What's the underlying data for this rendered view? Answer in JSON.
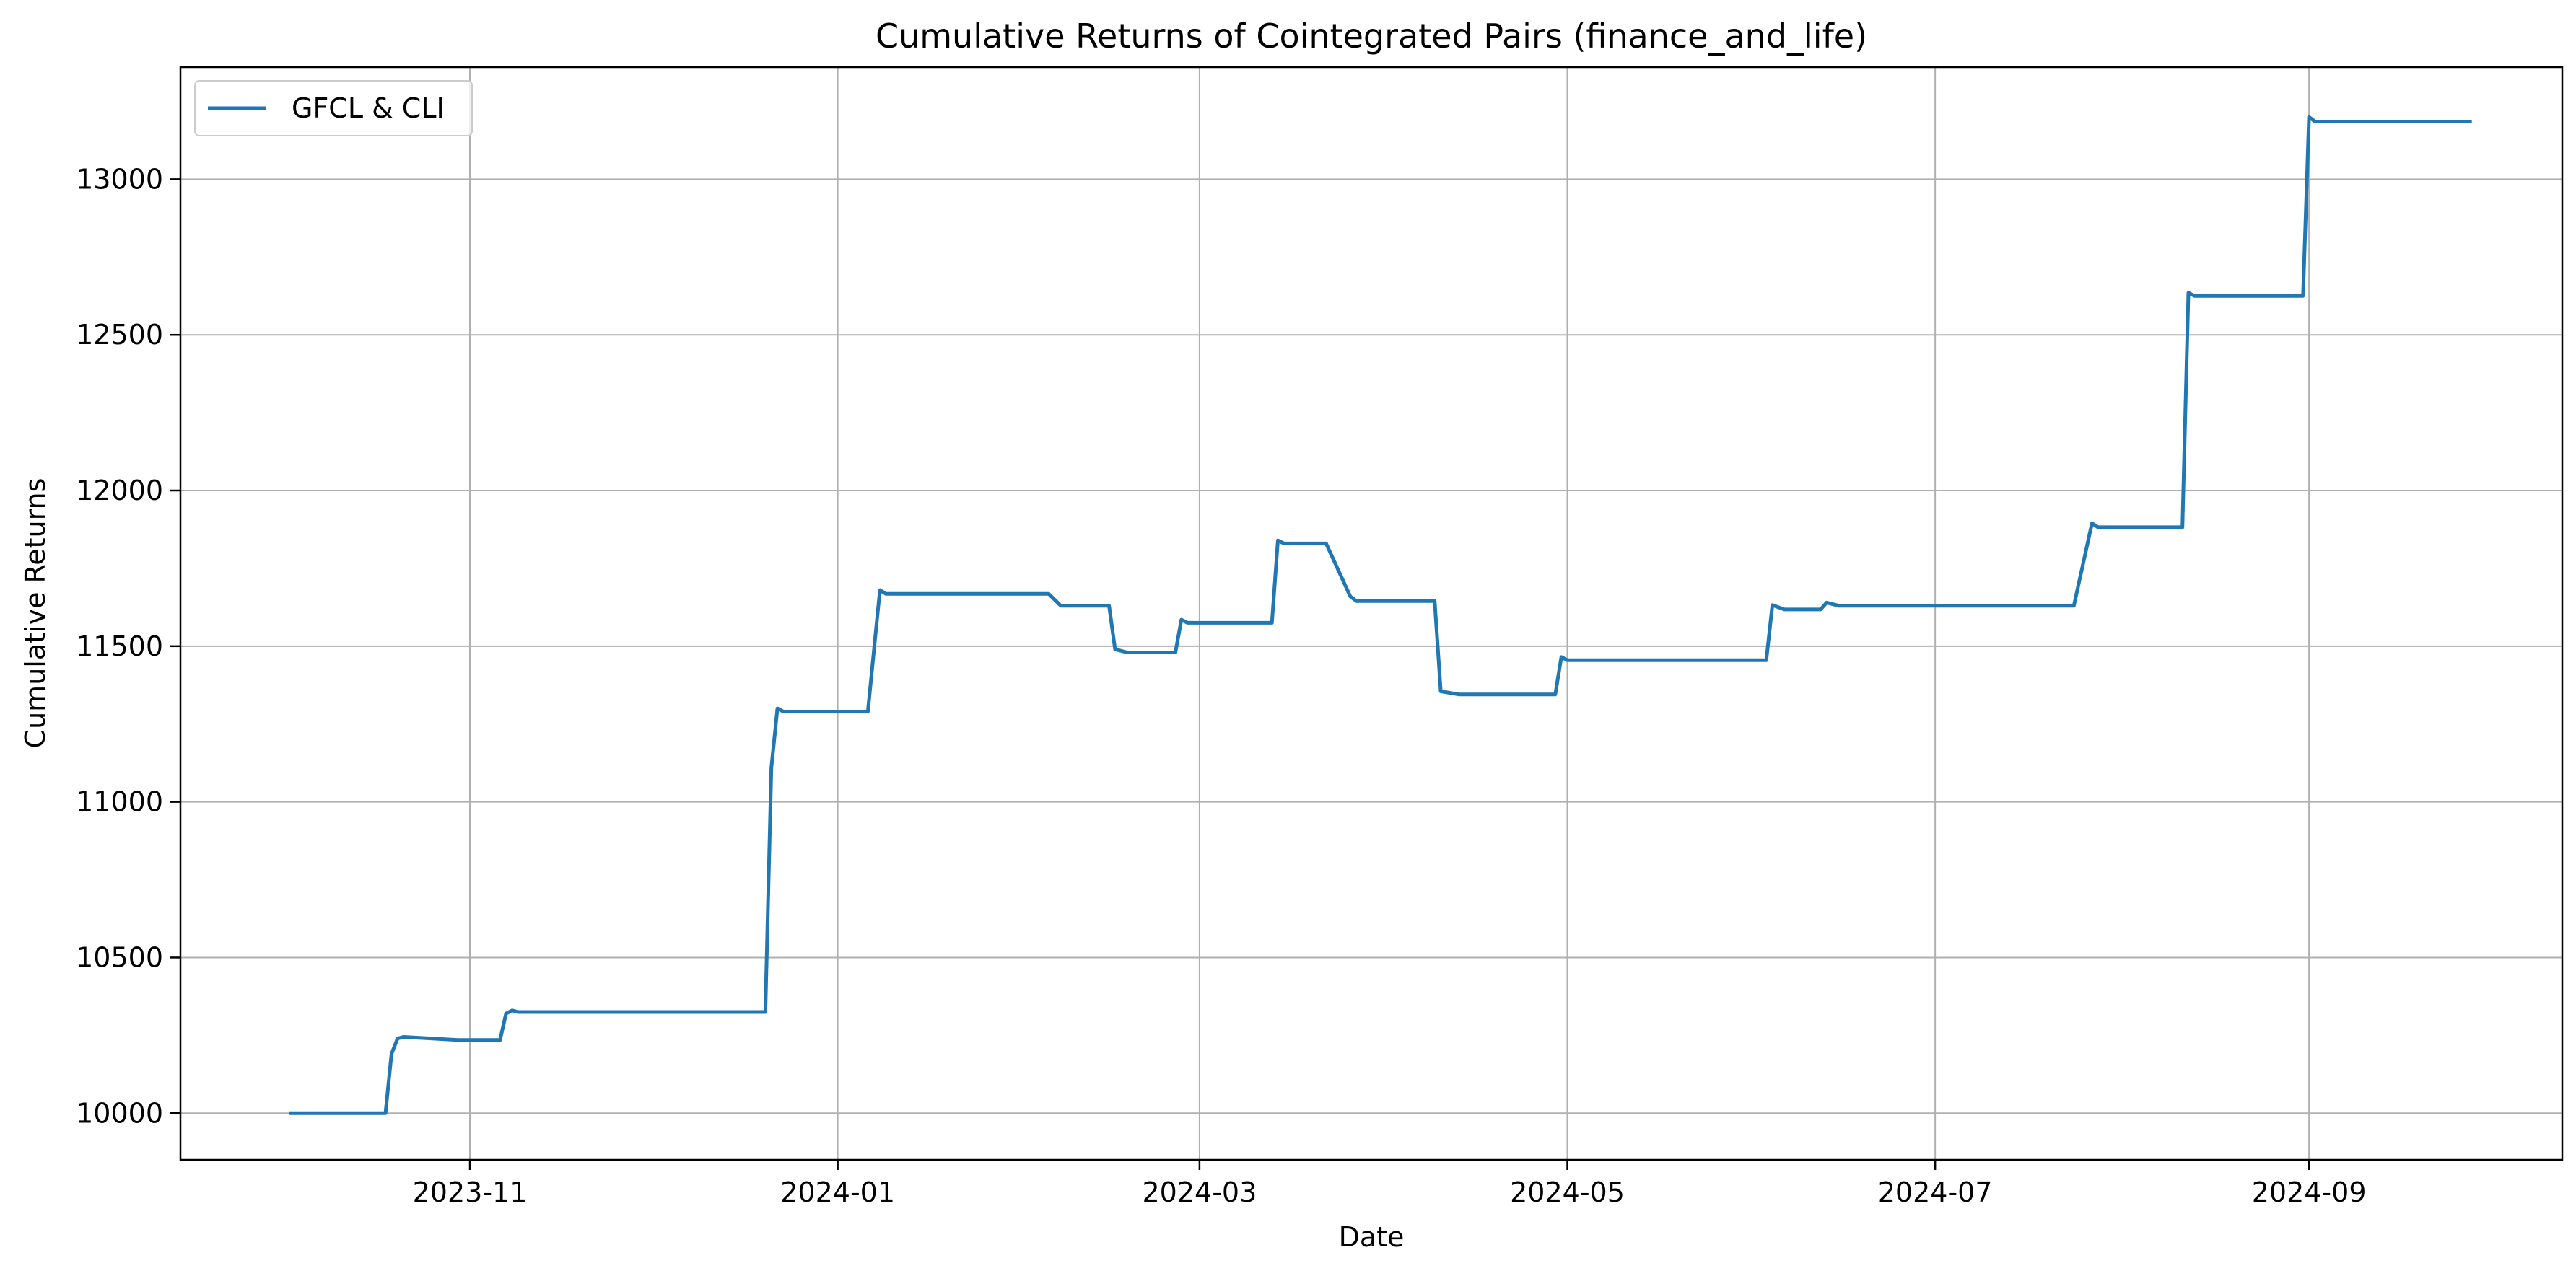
{
  "chart_data": {
    "type": "line",
    "title": "Cumulative Returns of Cointegrated Pairs (finance_and_life)",
    "xlabel": "Date",
    "ylabel": "Cumulative Returns",
    "xlim": [
      "2023-09-14",
      "2024-10-13"
    ],
    "ylim": [
      9850,
      13360
    ],
    "x_ticks": [
      "2023-11-01",
      "2024-01-01",
      "2024-03-01",
      "2024-05-01",
      "2024-07-01",
      "2024-09-01"
    ],
    "x_tick_labels": [
      "2023-11",
      "2024-01",
      "2024-03",
      "2024-05",
      "2024-07",
      "2024-09"
    ],
    "y_ticks": [
      10000,
      10500,
      11000,
      11500,
      12000,
      12500,
      13000
    ],
    "y_tick_labels": [
      "10000",
      "10500",
      "11000",
      "11500",
      "12000",
      "12500",
      "13000"
    ],
    "grid": true,
    "legend_position": "upper-left",
    "colors": {
      "series": "#1f77b4",
      "grid": "#b0b0b0",
      "axes": "#000000"
    },
    "series": [
      {
        "name": "GFCL & CLI",
        "points": [
          [
            "2023-10-02",
            10000
          ],
          [
            "2023-10-18",
            10000
          ],
          [
            "2023-10-19",
            10190
          ],
          [
            "2023-10-20",
            10240
          ],
          [
            "2023-10-21",
            10245
          ],
          [
            "2023-10-30",
            10235
          ],
          [
            "2023-11-06",
            10235
          ],
          [
            "2023-11-07",
            10320
          ],
          [
            "2023-11-08",
            10330
          ],
          [
            "2023-11-09",
            10325
          ],
          [
            "2023-12-20",
            10325
          ],
          [
            "2023-12-21",
            11110
          ],
          [
            "2023-12-22",
            11300
          ],
          [
            "2023-12-23",
            11290
          ],
          [
            "2024-01-06",
            11290
          ],
          [
            "2024-01-08",
            11680
          ],
          [
            "2024-01-09",
            11668
          ],
          [
            "2024-02-05",
            11668
          ],
          [
            "2024-02-07",
            11630
          ],
          [
            "2024-02-15",
            11630
          ],
          [
            "2024-02-16",
            11490
          ],
          [
            "2024-02-18",
            11480
          ],
          [
            "2024-02-26",
            11480
          ],
          [
            "2024-02-27",
            11585
          ],
          [
            "2024-02-28",
            11575
          ],
          [
            "2024-03-13",
            11575
          ],
          [
            "2024-03-14",
            11840
          ],
          [
            "2024-03-15",
            11830
          ],
          [
            "2024-03-22",
            11830
          ],
          [
            "2024-03-26",
            11660
          ],
          [
            "2024-03-27",
            11645
          ],
          [
            "2024-04-09",
            11645
          ],
          [
            "2024-04-10",
            11355
          ],
          [
            "2024-04-13",
            11345
          ],
          [
            "2024-04-29",
            11345
          ],
          [
            "2024-04-30",
            11465
          ],
          [
            "2024-05-01",
            11455
          ],
          [
            "2024-06-03",
            11455
          ],
          [
            "2024-06-04",
            11632
          ],
          [
            "2024-06-06",
            11618
          ],
          [
            "2024-06-12",
            11618
          ],
          [
            "2024-06-13",
            11640
          ],
          [
            "2024-06-15",
            11630
          ],
          [
            "2024-07-24",
            11630
          ],
          [
            "2024-07-27",
            11895
          ],
          [
            "2024-07-28",
            11882
          ],
          [
            "2024-08-11",
            11882
          ],
          [
            "2024-08-12",
            12635
          ],
          [
            "2024-08-13",
            12625
          ],
          [
            "2024-08-31",
            12625
          ],
          [
            "2024-09-01",
            13200
          ],
          [
            "2024-09-02",
            13185
          ],
          [
            "2024-09-28",
            13185
          ]
        ]
      }
    ]
  }
}
